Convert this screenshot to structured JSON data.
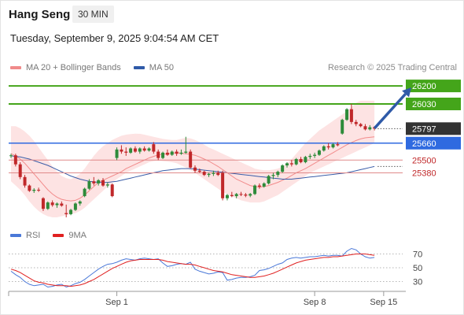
{
  "header": {
    "title": "Hang Seng",
    "interval": "30 MIN",
    "datetime": "Tuesday, September 9, 2025 9:04:54 AM CET"
  },
  "legend": {
    "bollinger": "MA 20 + Bollinger Bands",
    "ma50": "MA 50",
    "credit": "Research © 2025 Trading Central",
    "rsi": "RSI",
    "rsi_ma": "9MA"
  },
  "colors": {
    "up": "#2e8b3a",
    "down": "#c0282a",
    "bollinger_fill": "#fde3e3",
    "bollinger_line": "#f28b8b",
    "ma50": "#3a5da8",
    "resistance": "#44a51a",
    "support": "#e08a8a",
    "pivot": "#2f6ae0",
    "current": "#333333",
    "arrow": "#2f5aa8",
    "rsi": "#4a78d8",
    "rsi_ma": "#e02020"
  },
  "chart_data": [
    {
      "type": "candlestick",
      "title": "Hang Seng",
      "x_labels": [
        {
          "label": "Sep 1",
          "index": 23
        },
        {
          "label": "Sep 8",
          "index": 66
        },
        {
          "label": "Sep 15",
          "index": 81
        }
      ],
      "ylim": [
        24930,
        26290
      ],
      "levels": [
        {
          "value": 26200,
          "label": "26200",
          "kind": "resistance"
        },
        {
          "value": 26030,
          "label": "26030",
          "kind": "resistance"
        },
        {
          "value": 25797,
          "label": "25797",
          "kind": "current"
        },
        {
          "value": 25660,
          "label": "25660",
          "kind": "pivot"
        },
        {
          "value": 25500,
          "label": "25500",
          "kind": "support"
        },
        {
          "value": 25380,
          "label": "25380",
          "kind": "support"
        }
      ],
      "arrow": {
        "from": {
          "index": 79,
          "value": 25800
        },
        "to": {
          "index": 87,
          "value": 26185
        }
      },
      "candles": [
        [
          25540,
          25560,
          25520,
          25545
        ],
        [
          25545,
          25560,
          25440,
          25460
        ],
        [
          25460,
          25480,
          25320,
          25340
        ],
        [
          25340,
          25360,
          25240,
          25260
        ],
        [
          25260,
          25270,
          25200,
          25210
        ],
        [
          25210,
          25235,
          25190,
          25220
        ],
        [
          25220,
          25240,
          25200,
          25215
        ],
        [
          25140,
          25150,
          25020,
          25040
        ],
        [
          25040,
          25110,
          25030,
          25100
        ],
        [
          25100,
          25120,
          25060,
          25075
        ],
        [
          25075,
          25100,
          25050,
          25090
        ],
        [
          25090,
          25110,
          25060,
          25070
        ],
        [
          25000,
          25080,
          24960,
          24990
        ],
        [
          24990,
          25040,
          24980,
          25030
        ],
        [
          25030,
          25100,
          25020,
          25090
        ],
        [
          25090,
          25120,
          25070,
          25110
        ],
        [
          25160,
          25240,
          25150,
          25230
        ],
        [
          25230,
          25320,
          25220,
          25300
        ],
        [
          25300,
          25340,
          25260,
          25280
        ],
        [
          25280,
          25320,
          25260,
          25310
        ],
        [
          25310,
          25330,
          25250,
          25260
        ],
        [
          25260,
          25290,
          25240,
          25270
        ],
        [
          25270,
          25280,
          25150,
          25160
        ],
        [
          25520,
          25620,
          25500,
          25600
        ],
        [
          25600,
          25640,
          25560,
          25580
        ],
        [
          25580,
          25620,
          25540,
          25570
        ],
        [
          25570,
          25620,
          25560,
          25610
        ],
        [
          25610,
          25630,
          25570,
          25580
        ],
        [
          25580,
          25620,
          25560,
          25610
        ],
        [
          25610,
          25630,
          25580,
          25590
        ],
        [
          25590,
          25620,
          25580,
          25610
        ],
        [
          25650,
          25670,
          25560,
          25580
        ],
        [
          25580,
          25600,
          25500,
          25520
        ],
        [
          25520,
          25580,
          25510,
          25570
        ],
        [
          25570,
          25600,
          25540,
          25550
        ],
        [
          25550,
          25590,
          25540,
          25580
        ],
        [
          25580,
          25600,
          25540,
          25560
        ],
        [
          25560,
          25600,
          25550,
          25570
        ],
        [
          25570,
          25720,
          25560,
          25580
        ],
        [
          25580,
          25600,
          25420,
          25430
        ],
        [
          25430,
          25450,
          25380,
          25400
        ],
        [
          25400,
          25420,
          25380,
          25390
        ],
        [
          25390,
          25400,
          25350,
          25360
        ],
        [
          25360,
          25380,
          25340,
          25370
        ],
        [
          25370,
          25400,
          25350,
          25380
        ],
        [
          25380,
          25400,
          25350,
          25360
        ],
        [
          25380,
          25400,
          25120,
          25140
        ],
        [
          25140,
          25180,
          25120,
          25170
        ],
        [
          25170,
          25200,
          25150,
          25160
        ],
        [
          25160,
          25190,
          25140,
          25180
        ],
        [
          25180,
          25200,
          25160,
          25175
        ],
        [
          25175,
          25190,
          25150,
          25165
        ],
        [
          25165,
          25190,
          25150,
          25180
        ],
        [
          25180,
          25270,
          25170,
          25260
        ],
        [
          25260,
          25280,
          25230,
          25250
        ],
        [
          25250,
          25290,
          25240,
          25280
        ],
        [
          25280,
          25360,
          25270,
          25350
        ],
        [
          25350,
          25380,
          25320,
          25360
        ],
        [
          25360,
          25400,
          25340,
          25390
        ],
        [
          25390,
          25460,
          25380,
          25450
        ],
        [
          25450,
          25480,
          25430,
          25470
        ],
        [
          25470,
          25500,
          25440,
          25460
        ],
        [
          25460,
          25520,
          25450,
          25510
        ],
        [
          25510,
          25530,
          25470,
          25480
        ],
        [
          25480,
          25540,
          25470,
          25530
        ],
        [
          25530,
          25560,
          25510,
          25540
        ],
        [
          25540,
          25570,
          25520,
          25550
        ],
        [
          25550,
          25600,
          25540,
          25590
        ],
        [
          25590,
          25640,
          25580,
          25630
        ],
        [
          25630,
          25660,
          25600,
          25620
        ],
        [
          25620,
          25660,
          25610,
          25650
        ],
        [
          25650,
          25670,
          25630,
          25640
        ],
        [
          25750,
          25890,
          25740,
          25880
        ],
        [
          25880,
          25990,
          25870,
          25980
        ],
        [
          25980,
          26030,
          25840,
          25860
        ],
        [
          25860,
          25880,
          25820,
          25840
        ],
        [
          25840,
          25850,
          25810,
          25820
        ],
        [
          25820,
          25840,
          25780,
          25790
        ],
        [
          25790,
          25830,
          25780,
          25810
        ],
        [
          25810,
          25820,
          25780,
          25797
        ]
      ],
      "ma20": [
        25560,
        25540,
        25510,
        25470,
        25420,
        25370,
        25320,
        25270,
        25220,
        25180,
        25150,
        25130,
        25120,
        25115,
        25120,
        25140,
        25170,
        25210,
        25250,
        25290,
        25310,
        25330,
        25350,
        25370,
        25390,
        25420,
        25440,
        25460,
        25480,
        25500,
        25520,
        25535,
        25550,
        25555,
        25560,
        25565,
        25570,
        25565,
        25560,
        25555,
        25545,
        25530,
        25510,
        25490,
        25465,
        25440,
        25410,
        25380,
        25350,
        25320,
        25300,
        25280,
        25260,
        25250,
        25245,
        25250,
        25260,
        25275,
        25290,
        25310,
        25330,
        25355,
        25380,
        25400,
        25420,
        25445,
        25470,
        25495,
        25520,
        25545,
        25570,
        25595,
        25620,
        25645,
        25665,
        25685,
        25700,
        25710,
        25715,
        25720
      ],
      "bb_upper": [
        25820,
        25820,
        25800,
        25770,
        25730,
        25680,
        25620,
        25560,
        25500,
        25440,
        25390,
        25350,
        25330,
        25320,
        25340,
        25370,
        25420,
        25480,
        25540,
        25590,
        25630,
        25660,
        25690,
        25710,
        25730,
        25740,
        25745,
        25750,
        25748,
        25740,
        25730,
        25720,
        25710,
        25700,
        25695,
        25690,
        25690,
        25700,
        25710,
        25705,
        25690,
        25670,
        25645,
        25620,
        25600,
        25580,
        25560,
        25540,
        25520,
        25500,
        25480,
        25460,
        25440,
        25420,
        25410,
        25405,
        25405,
        25410,
        25420,
        25440,
        25470,
        25510,
        25560,
        25610,
        25660,
        25700,
        25740,
        25780,
        25810,
        25840,
        25870,
        25900,
        25930,
        25960,
        26000,
        26040,
        26060,
        26060,
        26060,
        26060
      ],
      "bb_lower": [
        25300,
        25260,
        25220,
        25170,
        25110,
        25060,
        25020,
        24990,
        24970,
        24960,
        24960,
        24970,
        24980,
        24990,
        25000,
        25020,
        25050,
        25090,
        25130,
        25170,
        25210,
        25250,
        25290,
        25320,
        25350,
        25380,
        25400,
        25420,
        25440,
        25460,
        25480,
        25490,
        25495,
        25490,
        25485,
        25480,
        25470,
        25450,
        25430,
        25405,
        25380,
        25350,
        25320,
        25290,
        25260,
        25230,
        25200,
        25180,
        25160,
        25140,
        25120,
        25110,
        25100,
        25100,
        25100,
        25110,
        25130,
        25150,
        25170,
        25200,
        25230,
        25260,
        25290,
        25320,
        25350,
        25380,
        25400,
        25420,
        25440,
        25460,
        25480,
        25500,
        25520,
        25540,
        25560,
        25580,
        25600,
        25620,
        25640,
        25660
      ],
      "ma50": [
        25540,
        25535,
        25530,
        25520,
        25510,
        25495,
        25480,
        25465,
        25450,
        25430,
        25410,
        25390,
        25370,
        25350,
        25335,
        25320,
        25310,
        25300,
        25295,
        25290,
        25290,
        25290,
        25295,
        25300,
        25310,
        25320,
        25330,
        25340,
        25350,
        25360,
        25370,
        25380,
        25390,
        25400,
        25405,
        25410,
        25415,
        25420,
        25420,
        25420,
        25415,
        25410,
        25405,
        25400,
        25395,
        25390,
        25385,
        25380,
        25375,
        25370,
        25365,
        25360,
        25355,
        25350,
        25345,
        25340,
        25335,
        25330,
        25325,
        25320,
        25320,
        25320,
        25325,
        25330,
        25335,
        25340,
        25345,
        25350,
        25355,
        25360,
        25365,
        25370,
        25375,
        25380,
        25390,
        25400,
        25410,
        25420,
        25430,
        25440
      ]
    },
    {
      "type": "line",
      "title": "RSI",
      "ylim": [
        10,
        90
      ],
      "ticks": [
        70,
        50,
        30
      ],
      "series": [
        {
          "name": "RSI",
          "values": [
            45,
            40,
            36,
            30,
            26,
            24,
            25,
            26,
            22,
            23,
            25,
            26,
            22,
            24,
            27,
            29,
            33,
            38,
            43,
            48,
            52,
            55,
            56,
            58,
            61,
            63,
            62,
            61,
            63,
            64,
            63,
            62,
            63,
            57,
            52,
            53,
            55,
            56,
            55,
            58,
            48,
            45,
            43,
            41,
            42,
            44,
            43,
            32,
            33,
            35,
            36,
            36,
            37,
            39,
            46,
            47,
            49,
            52,
            55,
            57,
            62,
            64,
            65,
            64,
            65,
            66,
            66,
            67,
            68,
            67,
            68,
            68,
            67,
            74,
            78,
            76,
            70,
            66,
            64,
            65
          ]
        },
        {
          "name": "9MA",
          "values": [
            48,
            46,
            43,
            39,
            35,
            31,
            29,
            28,
            26,
            25,
            24,
            24,
            24,
            23,
            24,
            25,
            27,
            30,
            33,
            37,
            41,
            45,
            49,
            52,
            55,
            58,
            60,
            61,
            62,
            62,
            62,
            62,
            62,
            61,
            59,
            58,
            57,
            56,
            55,
            55,
            54,
            52,
            50,
            48,
            46,
            45,
            44,
            42,
            40,
            39,
            38,
            37,
            36,
            36,
            37,
            38,
            40,
            42,
            45,
            48,
            51,
            54,
            57,
            59,
            61,
            62,
            63,
            64,
            65,
            65,
            66,
            66,
            67,
            68,
            69,
            70,
            70,
            70,
            69,
            68
          ]
        }
      ]
    }
  ]
}
